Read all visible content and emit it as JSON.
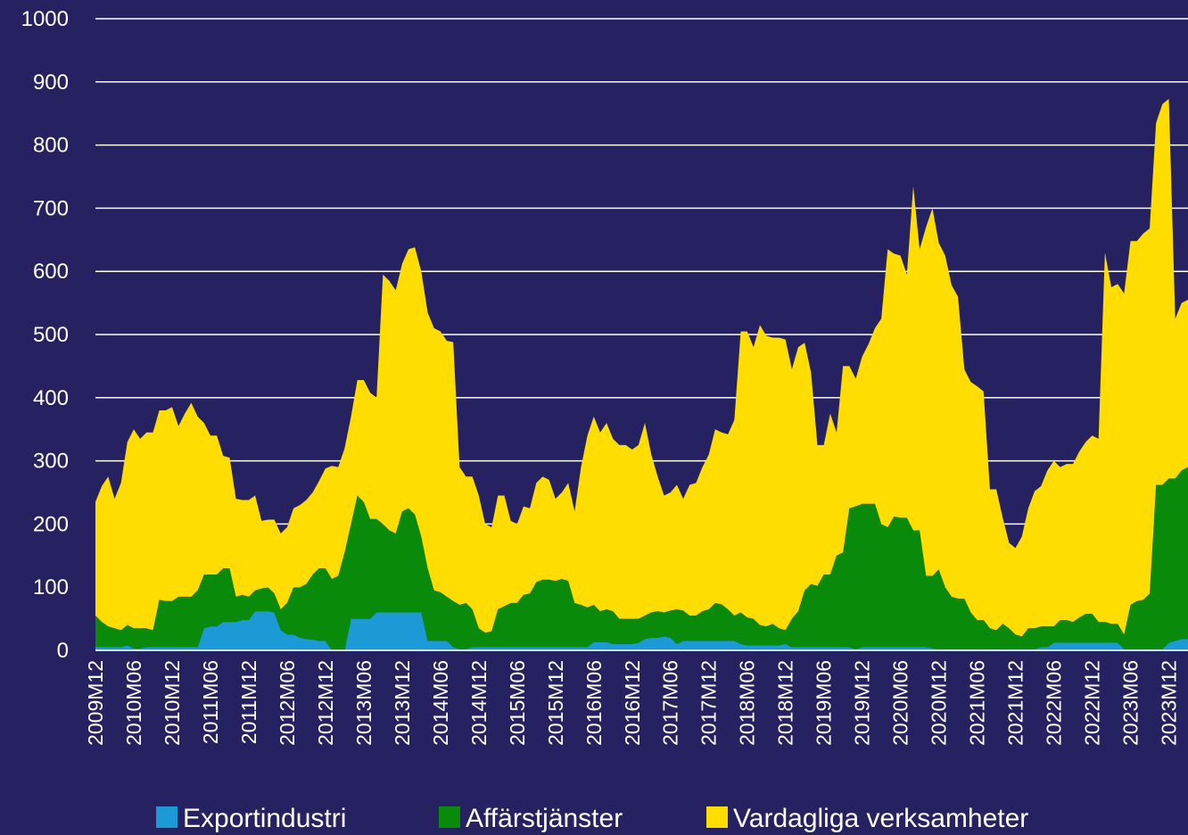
{
  "chart_data": {
    "type": "stacked_area",
    "categories": [
      "2009M12",
      null,
      null,
      null,
      null,
      null,
      "2010M06",
      null,
      null,
      null,
      null,
      null,
      "2010M12",
      null,
      null,
      null,
      null,
      null,
      "2011M06",
      null,
      null,
      null,
      null,
      null,
      "2011M12",
      null,
      null,
      null,
      null,
      null,
      "2012M06",
      null,
      null,
      null,
      null,
      null,
      "2012M12",
      null,
      null,
      null,
      null,
      null,
      "2013M06",
      null,
      null,
      null,
      null,
      null,
      "2013M12",
      null,
      null,
      null,
      null,
      null,
      "2014M06",
      null,
      null,
      null,
      null,
      null,
      "2014M12",
      null,
      null,
      null,
      null,
      null,
      "2015M06",
      null,
      null,
      null,
      null,
      null,
      "2015M12",
      null,
      null,
      null,
      null,
      null,
      "2016M06",
      null,
      null,
      null,
      null,
      null,
      "2016M12",
      null,
      null,
      null,
      null,
      null,
      "2017M06",
      null,
      null,
      null,
      null,
      null,
      "2017M12",
      null,
      null,
      null,
      null,
      null,
      "2018M06",
      null,
      null,
      null,
      null,
      null,
      "2018M12",
      null,
      null,
      null,
      null,
      null,
      "2019M06",
      null,
      null,
      null,
      null,
      null,
      "2019M12",
      null,
      null,
      null,
      null,
      null,
      "2020M06",
      null,
      null,
      null,
      null,
      null,
      "2020M12",
      null,
      null,
      null,
      null,
      null,
      "2021M06",
      null,
      null,
      null,
      null,
      null,
      "2021M12",
      null,
      null,
      null,
      null,
      null,
      "2022M06",
      null,
      null,
      null,
      null,
      null,
      "2022M12",
      null,
      null,
      null,
      null,
      null,
      "2023M06",
      null,
      null,
      null,
      null,
      null,
      "2023M12",
      null,
      null,
      null
    ],
    "series": [
      {
        "name": "Exportindustri",
        "color": "#1b9ad6",
        "values": [
          5,
          5,
          5,
          5,
          5,
          8,
          3,
          3,
          5,
          5,
          5,
          5,
          5,
          5,
          5,
          5,
          5,
          35,
          38,
          38,
          45,
          45,
          45,
          48,
          48,
          62,
          62,
          62,
          60,
          32,
          25,
          25,
          20,
          18,
          17,
          15,
          15,
          0,
          0,
          0,
          50,
          50,
          50,
          50,
          60,
          60,
          60,
          60,
          60,
          60,
          60,
          60,
          15,
          15,
          15,
          15,
          5,
          2,
          2,
          5,
          5,
          5,
          5,
          5,
          5,
          5,
          5,
          5,
          5,
          5,
          5,
          5,
          5,
          5,
          5,
          5,
          5,
          5,
          13,
          13,
          13,
          10,
          10,
          10,
          10,
          12,
          18,
          20,
          20,
          22,
          20,
          10,
          15,
          15,
          15,
          15,
          15,
          15,
          15,
          15,
          15,
          10,
          8,
          8,
          8,
          8,
          8,
          8,
          10,
          5,
          5,
          5,
          5,
          5,
          5,
          5,
          5,
          5,
          5,
          2,
          5,
          5,
          5,
          5,
          5,
          5,
          5,
          5,
          5,
          5,
          5,
          3,
          2,
          2,
          2,
          2,
          2,
          2,
          2,
          2,
          2,
          2,
          2,
          2,
          2,
          2,
          2,
          2,
          5,
          5,
          12,
          12,
          12,
          12,
          12,
          12,
          12,
          12,
          12,
          12,
          12,
          2,
          2,
          2,
          2,
          2,
          2,
          2,
          12,
          15,
          18,
          18
        ]
      },
      {
        "name": "Affärstjänster",
        "color": "#0a8a0a",
        "values": [
          50,
          40,
          33,
          30,
          27,
          32,
          32,
          32,
          30,
          27,
          75,
          73,
          73,
          80,
          80,
          80,
          90,
          85,
          82,
          82,
          85,
          85,
          40,
          40,
          37,
          33,
          36,
          38,
          30,
          33,
          50,
          75,
          80,
          87,
          103,
          115,
          115,
          113,
          118,
          155,
          150,
          195,
          185,
          158,
          148,
          140,
          130,
          125,
          160,
          165,
          155,
          120,
          115,
          80,
          77,
          70,
          73,
          70,
          73,
          60,
          30,
          23,
          25,
          60,
          65,
          70,
          70,
          83,
          85,
          103,
          107,
          107,
          105,
          108,
          105,
          70,
          67,
          63,
          59,
          49,
          52,
          52,
          40,
          40,
          40,
          38,
          37,
          40,
          42,
          38,
          43,
          55,
          48,
          40,
          40,
          47,
          50,
          60,
          58,
          50,
          40,
          50,
          44,
          42,
          32,
          30,
          34,
          27,
          22,
          45,
          57,
          90,
          100,
          97,
          115,
          115,
          145,
          150,
          220,
          226,
          227,
          227,
          227,
          195,
          190,
          207,
          205,
          205,
          185,
          185,
          113,
          115,
          126,
          98,
          83,
          80,
          80,
          58,
          46,
          46,
          33,
          30,
          40,
          33,
          23,
          20,
          33,
          33,
          33,
          33,
          26,
          36,
          36,
          33,
          40,
          46,
          46,
          33,
          33,
          30,
          30,
          23,
          70,
          76,
          78,
          88,
          260,
          260,
          260,
          257,
          267,
          272
        ]
      },
      {
        "name": "Vardagliga verksamheter",
        "color": "#ffdd00",
        "values": [
          180,
          215,
          237,
          205,
          233,
          290,
          315,
          300,
          310,
          313,
          300,
          302,
          307,
          270,
          290,
          307,
          275,
          240,
          220,
          220,
          178,
          175,
          155,
          150,
          153,
          150,
          107,
          107,
          117,
          120,
          120,
          125,
          130,
          133,
          130,
          138,
          158,
          179,
          172,
          165,
          170,
          183,
          193,
          200,
          192,
          395,
          395,
          385,
          392,
          410,
          423,
          420,
          405,
          415,
          413,
          405,
          410,
          218,
          200,
          210,
          210,
          172,
          165,
          180,
          175,
          130,
          125,
          140,
          135,
          157,
          163,
          158,
          130,
          137,
          155,
          145,
          218,
          272,
          298,
          283,
          295,
          273,
          275,
          275,
          268,
          275,
          305,
          250,
          213,
          185,
          187,
          197,
          177,
          207,
          210,
          228,
          245,
          275,
          272,
          277,
          310,
          445,
          453,
          430,
          475,
          460,
          453,
          460,
          460,
          395,
          418,
          392,
          335,
          223,
          205,
          255,
          195,
          295,
          225,
          202,
          233,
          253,
          278,
          325,
          440,
          416,
          415,
          385,
          545,
          445,
          552,
          582,
          517,
          525,
          493,
          478,
          363,
          365,
          370,
          362,
          220,
          223,
          168,
          135,
          137,
          158,
          190,
          217,
          222,
          247,
          262,
          242,
          247,
          250,
          263,
          272,
          282,
          290,
          585,
          533,
          538,
          540,
          576,
          570,
          580,
          578,
          573,
          603,
          601,
          253,
          265,
          265
        ]
      }
    ],
    "ylim": [
      0,
      1000
    ],
    "yticks": [
      0,
      100,
      200,
      300,
      400,
      500,
      600,
      700,
      800,
      900,
      1000
    ],
    "grid": true,
    "legend": "bottom"
  }
}
